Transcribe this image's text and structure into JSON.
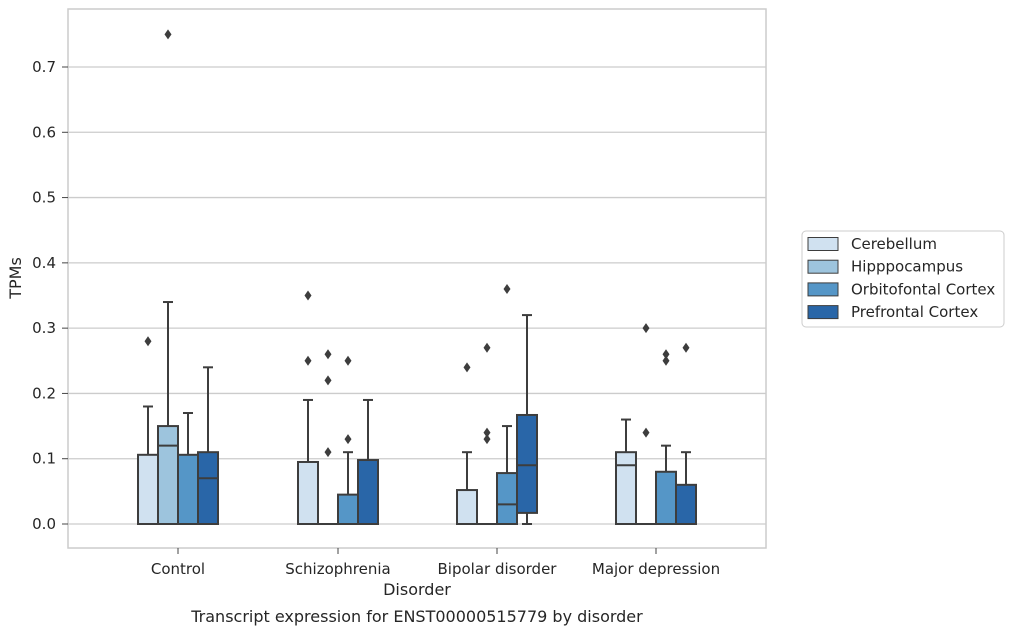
{
  "chart_data": {
    "type": "boxplot",
    "title": "",
    "caption": "Transcript expression for ENST00000515779 by disorder",
    "xlabel": "Disorder",
    "ylabel": "TPMs",
    "ylim": [
      -0.036,
      0.79
    ],
    "yticks": [
      0.0,
      0.1,
      0.2,
      0.3,
      0.4,
      0.5,
      0.6,
      0.7
    ],
    "ytick_labels": [
      "0.0",
      "0.1",
      "0.2",
      "0.3",
      "0.4",
      "0.5",
      "0.6",
      "0.7"
    ],
    "grid": true,
    "legend_placement": "right",
    "categories": [
      "Control",
      "Schizophrenia",
      "Bipolar disorder",
      "Major depression"
    ],
    "series": [
      {
        "name": "Cerebellum",
        "color": "#d0e1f0",
        "boxes": [
          {
            "q1": 0.0,
            "median": 0.0,
            "q3": 0.106,
            "whisker_low": 0.0,
            "whisker_high": 0.18,
            "outliers": [
              0.28
            ]
          },
          {
            "q1": 0.0,
            "median": 0.0,
            "q3": 0.095,
            "whisker_low": 0.0,
            "whisker_high": 0.19,
            "outliers": [
              0.25,
              0.35
            ]
          },
          {
            "q1": 0.0,
            "median": 0.0,
            "q3": 0.052,
            "whisker_low": 0.0,
            "whisker_high": 0.11,
            "outliers": [
              0.24
            ]
          },
          {
            "q1": 0.0,
            "median": 0.09,
            "q3": 0.11,
            "whisker_low": 0.0,
            "whisker_high": 0.16,
            "outliers": []
          }
        ]
      },
      {
        "name": "Hipppocampus",
        "color": "#9dc4dd",
        "boxes": [
          {
            "q1": 0.0,
            "median": 0.12,
            "q3": 0.15,
            "whisker_low": 0.0,
            "whisker_high": 0.34,
            "outliers": [
              0.75
            ]
          },
          {
            "q1": 0.0,
            "median": 0.0,
            "q3": 0.0,
            "whisker_low": 0.0,
            "whisker_high": 0.0,
            "outliers": [
              0.11,
              0.22,
              0.26
            ]
          },
          {
            "q1": 0.0,
            "median": 0.0,
            "q3": 0.0,
            "whisker_low": 0.0,
            "whisker_high": 0.0,
            "outliers": [
              0.13,
              0.14,
              0.27
            ]
          },
          {
            "q1": 0.0,
            "median": 0.0,
            "q3": 0.0,
            "whisker_low": 0.0,
            "whisker_high": 0.0,
            "outliers": [
              0.14,
              0.3
            ]
          }
        ]
      },
      {
        "name": "Orbitofontal Cortex",
        "color": "#5596c7",
        "boxes": [
          {
            "q1": 0.0,
            "median": 0.0,
            "q3": 0.106,
            "whisker_low": 0.0,
            "whisker_high": 0.17,
            "outliers": []
          },
          {
            "q1": 0.0,
            "median": 0.0,
            "q3": 0.045,
            "whisker_low": 0.0,
            "whisker_high": 0.11,
            "outliers": [
              0.13,
              0.25
            ]
          },
          {
            "q1": 0.0,
            "median": 0.03,
            "q3": 0.078,
            "whisker_low": 0.0,
            "whisker_high": 0.15,
            "outliers": [
              0.36
            ]
          },
          {
            "q1": 0.0,
            "median": 0.0,
            "q3": 0.08,
            "whisker_low": 0.0,
            "whisker_high": 0.12,
            "outliers": [
              0.25,
              0.26
            ]
          }
        ]
      },
      {
        "name": "Prefrontal Cortex",
        "color": "#2966a8",
        "boxes": [
          {
            "q1": 0.0,
            "median": 0.07,
            "q3": 0.11,
            "whisker_low": 0.0,
            "whisker_high": 0.24,
            "outliers": []
          },
          {
            "q1": 0.0,
            "median": 0.0,
            "q3": 0.098,
            "whisker_low": 0.0,
            "whisker_high": 0.19,
            "outliers": []
          },
          {
            "q1": 0.017,
            "median": 0.09,
            "q3": 0.167,
            "whisker_low": 0.0,
            "whisker_high": 0.32,
            "outliers": []
          },
          {
            "q1": 0.0,
            "median": 0.0,
            "q3": 0.06,
            "whisker_low": 0.0,
            "whisker_high": 0.11,
            "outliers": [
              0.27
            ]
          }
        ]
      }
    ]
  }
}
